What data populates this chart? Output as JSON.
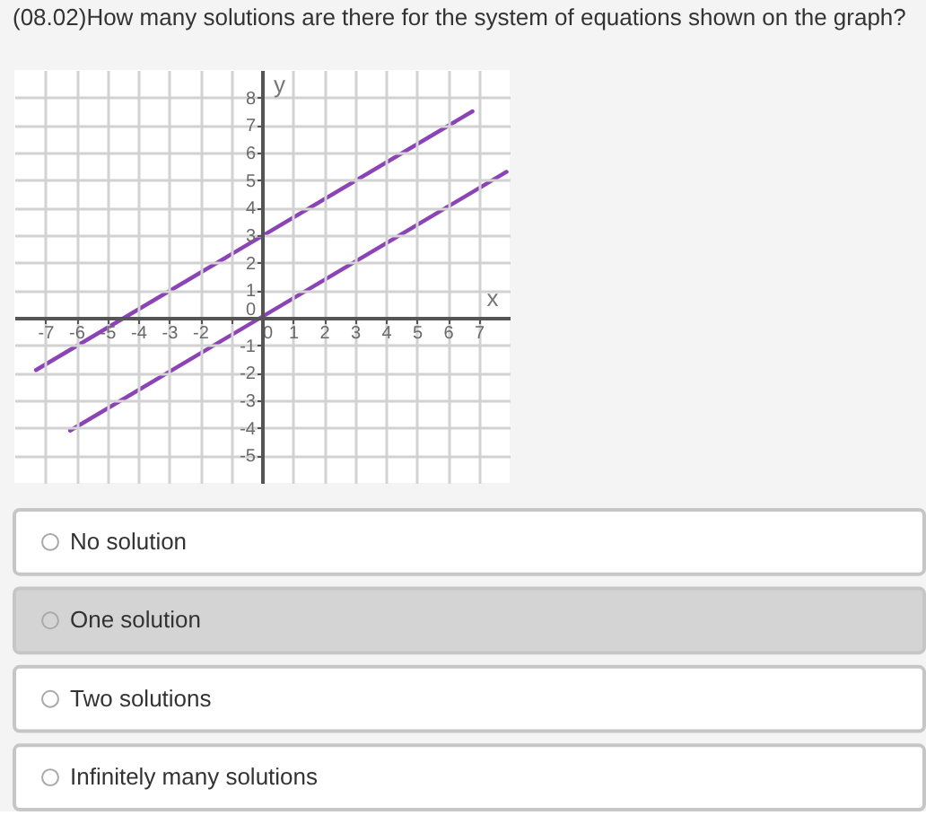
{
  "chart_data": [
    {
      "type": "line",
      "title": "(08.02)How many solutions are there for the system of equations shown on the graph?",
      "xlabel": "x",
      "ylabel": "y",
      "series": [
        {
          "color": "#8b43b5",
          "x": [
            -7.3,
            6.8
          ],
          "values": [
            -1.9,
            7.5
          ]
        },
        {
          "color": "#8b43b5",
          "x": [
            -6.2,
            7.9
          ],
          "values": [
            -4.1,
            5.3
          ]
        }
      ],
      "xlim": [
        -8,
        8
      ],
      "ylim": [
        -6,
        9
      ],
      "xticks": [
        -7,
        -6,
        -5,
        -4,
        -3,
        -2,
        {
          "value": -1,
          "label": null
        },
        0,
        1,
        2,
        3,
        4,
        5,
        6,
        7
      ],
      "yticks": [
        -5,
        -4,
        -3,
        -2,
        -1,
        0,
        1,
        2,
        3,
        4,
        5,
        6,
        7,
        8
      ],
      "grid": true
    },
    {
      "type": "other",
      "categories": [
        "No solution",
        "One solution",
        "Two solutions",
        "Infinitely many solutions"
      ],
      "colors": [
        "#ffffff",
        "#d4d4d4",
        "#ffffff",
        "#ffffff"
      ]
    }
  ]
}
